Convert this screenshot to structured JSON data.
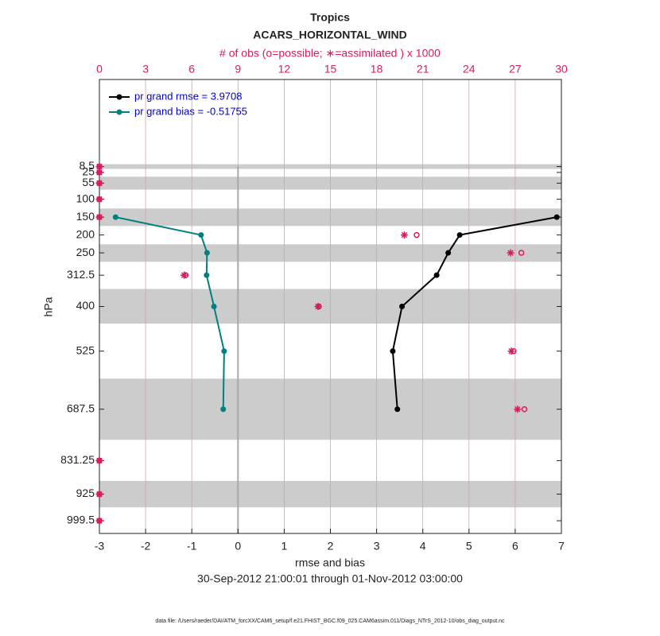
{
  "chart_data": {
    "type": "line",
    "title": "Tropics",
    "subtitle": "ACARS_HORIZONTAL_WIND",
    "x2label": "# of obs (o=possible; ∗=assimilated ) x 1000",
    "xlabel": "rmse and bias",
    "ylabel": "hPa",
    "date_range": "30-Sep-2012 21:00:01 through 01-Nov-2012 03:00:00",
    "footer": "data file: /Users/raeder/DAI/ATM_forcXX/CAM6_setup/f.e21.FHIST_BGC.f09_025.CAM6assim.011/Diags_NTrS_2012-10/obs_diag_output.nc",
    "y": [
      8.5,
      25,
      55,
      100,
      150,
      200,
      250,
      312.5,
      400,
      525,
      687.5,
      831.25,
      925,
      999.5
    ],
    "ylim": [
      1035,
      -235
    ],
    "yticks": [
      8.5,
      25,
      55,
      100,
      150,
      200,
      250,
      312.5,
      400,
      525,
      687.5,
      831.25,
      925,
      999.5
    ],
    "xlim": [
      -3,
      7
    ],
    "xticks": [
      -3,
      -2,
      -1,
      0,
      1,
      2,
      3,
      4,
      5,
      6,
      7
    ],
    "x2lim": [
      0,
      30
    ],
    "x2ticks": [
      0,
      3,
      6,
      9,
      12,
      15,
      18,
      21,
      24,
      27,
      30
    ],
    "grid": true,
    "bands": [
      [
        2,
        15
      ],
      [
        37,
        73
      ],
      [
        126,
        175
      ],
      [
        226,
        275
      ],
      [
        351,
        448
      ],
      [
        602,
        773
      ],
      [
        888,
        962
      ]
    ],
    "series": [
      {
        "name": "pr grand rmse = 3.9708",
        "color": "#000000",
        "values": [
          null,
          null,
          null,
          null,
          6.9,
          4.8,
          4.55,
          4.3,
          3.55,
          3.35,
          3.45,
          null,
          null,
          null
        ]
      },
      {
        "name": "pr grand bias = -0.51755",
        "color": "#008080",
        "values": [
          null,
          null,
          null,
          null,
          -2.65,
          -0.8,
          -0.67,
          -0.68,
          -0.52,
          -0.3,
          -0.32,
          null,
          null,
          null
        ]
      }
    ],
    "obs": [
      {
        "symbol": "o",
        "color": "#d81b60",
        "axis": "x2",
        "values": [
          0,
          0,
          0,
          0,
          0,
          20.6,
          27.4,
          5.6,
          14.25,
          26.9,
          27.6,
          0,
          0,
          0
        ]
      },
      {
        "symbol": "*",
        "color": "#d81b60",
        "axis": "x2",
        "values": [
          0,
          0,
          0,
          0,
          0,
          19.8,
          26.7,
          5.5,
          14.2,
          26.75,
          27.15,
          0,
          0,
          0
        ]
      }
    ],
    "legend": "upper left"
  }
}
